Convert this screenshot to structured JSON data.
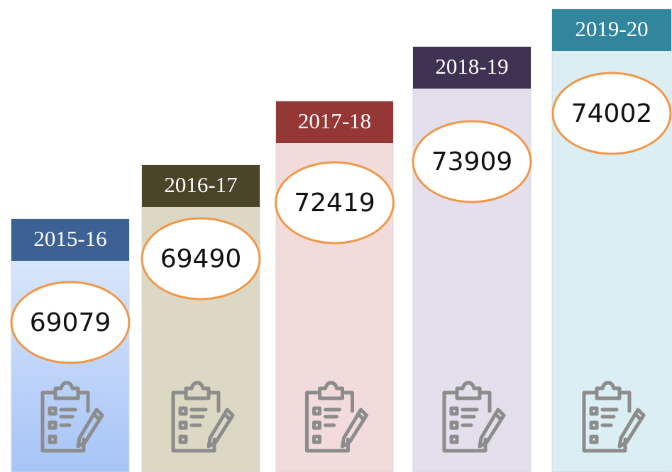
{
  "items": [
    {
      "label": "2015-16",
      "value": "69079"
    },
    {
      "label": "2016-17",
      "value": "69490"
    },
    {
      "label": "2017-18",
      "value": "72419"
    },
    {
      "label": "2018-19",
      "value": "73909"
    },
    {
      "label": "2019-20",
      "value": "74002"
    }
  ]
}
